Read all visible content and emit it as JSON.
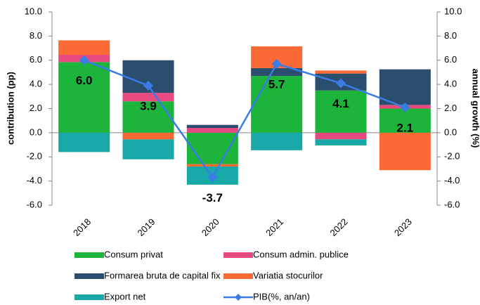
{
  "chart_data": {
    "type": "bar",
    "stacked": true,
    "categories": [
      "2018",
      "2019",
      "2020",
      "2021",
      "2022",
      "2023"
    ],
    "ylabel": "contribution (pp)",
    "y2label": "annual growth (%)",
    "ylim": [
      -6,
      10
    ],
    "yticks": [
      {
        "value": -6,
        "label": "-6.0"
      },
      {
        "value": -4,
        "label": "-4.0"
      },
      {
        "value": -2,
        "label": "-2.0"
      },
      {
        "value": 0,
        "label": "0.0"
      },
      {
        "value": 2,
        "label": "2.0"
      },
      {
        "value": 4,
        "label": "4.0"
      },
      {
        "value": 6,
        "label": "6.0"
      },
      {
        "value": 8,
        "label": "8.0"
      },
      {
        "value": 10,
        "label": "10.0"
      }
    ],
    "y2lim": [
      -6,
      10
    ],
    "y2ticks": [
      {
        "value": -6,
        "label": "-6.0"
      },
      {
        "value": -4,
        "label": "-4.0"
      },
      {
        "value": -2,
        "label": "-2.0"
      },
      {
        "value": 0,
        "label": "0.0"
      },
      {
        "value": 2,
        "label": "2.0"
      },
      {
        "value": 4,
        "label": "4.0"
      },
      {
        "value": 6,
        "label": "6.0"
      },
      {
        "value": 8,
        "label": "8.0"
      },
      {
        "value": 10,
        "label": "10.0"
      }
    ],
    "legend": "bottom",
    "series": [
      {
        "name": "Consum privat",
        "type": "bar",
        "color": "#1db43c",
        "values": [
          5.85,
          2.6,
          -2.6,
          4.7,
          3.5,
          2.0
        ]
      },
      {
        "name": "Consum admin. publice",
        "type": "bar",
        "color": "#e84a7f",
        "values": [
          0.6,
          0.7,
          0.4,
          0,
          -0.55,
          0.3
        ]
      },
      {
        "name": "Formarea bruta de capital fix",
        "type": "bar",
        "color": "#2b4e6e",
        "values": [
          0,
          2.7,
          0.25,
          0.65,
          1.4,
          2.95
        ]
      },
      {
        "name": "Variatia stocurilor",
        "type": "bar",
        "color": "#fb6a34",
        "values": [
          1.2,
          -0.55,
          -0.2,
          1.8,
          0.25,
          -3.1
        ]
      },
      {
        "name": "Export net",
        "type": "bar",
        "color": "#18a8a8",
        "values": [
          -1.6,
          -1.65,
          -1.5,
          -1.45,
          -0.5,
          0
        ]
      },
      {
        "name": "PIB(%, an/an)",
        "type": "line",
        "axis": "y2",
        "color": "#3a7be6",
        "values": [
          6.0,
          3.9,
          -3.7,
          5.7,
          4.1,
          2.1
        ],
        "value_labels": [
          "6.0",
          "3.9",
          "-3.7",
          "5.7",
          "4.1",
          "2.1"
        ]
      }
    ]
  }
}
